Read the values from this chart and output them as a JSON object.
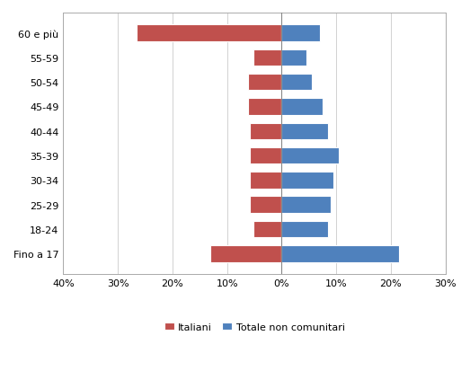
{
  "categories": [
    "60 e più",
    "55-59",
    "50-54",
    "45-49",
    "40-44",
    "35-39",
    "30-34",
    "25-29",
    "18-24",
    "Fino a 17"
  ],
  "italiani": [
    -26.5,
    -5.2,
    -6.2,
    -6.2,
    -5.8,
    -5.8,
    -5.8,
    -5.8,
    -5.2,
    -13.0
  ],
  "non_comunitari": [
    7.0,
    4.5,
    5.5,
    7.5,
    8.5,
    10.5,
    9.5,
    9.0,
    8.5,
    21.5
  ],
  "color_italiani": "#C0504D",
  "color_non_comunitari": "#4F81BD",
  "xlim": [
    -40,
    30
  ],
  "xticks": [
    -40,
    -30,
    -20,
    -10,
    0,
    10,
    20,
    30
  ],
  "xticklabels": [
    "40%",
    "30%",
    "20%",
    "10%",
    "0%",
    "10%",
    "20%",
    "30%"
  ],
  "legend_italiani": "Italiani",
  "legend_non_comunitari": "Totale non comunitari",
  "background_color": "#FFFFFF",
  "bar_edge_color": "#FFFFFF"
}
